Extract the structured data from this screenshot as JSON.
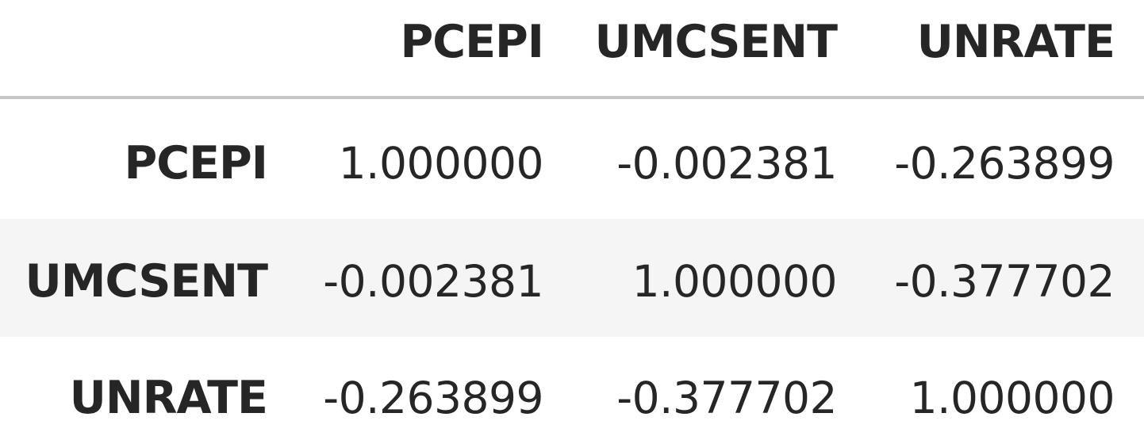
{
  "table": {
    "columns": [
      "PCEPI",
      "UMCSENT",
      "UNRATE"
    ],
    "rows": [
      {
        "index": "PCEPI",
        "values": [
          "1.000000",
          "-0.002381",
          "-0.263899"
        ]
      },
      {
        "index": "UMCSENT",
        "values": [
          "-0.002381",
          "1.000000",
          "-0.377702"
        ]
      },
      {
        "index": "UNRATE",
        "values": [
          "-0.263899",
          "-0.377702",
          "1.000000"
        ]
      }
    ]
  },
  "colors": {
    "text": "#262626",
    "header_rule": "#c6c6c6",
    "striped_row_background": "#f5f5f5",
    "background": "#ffffff"
  }
}
